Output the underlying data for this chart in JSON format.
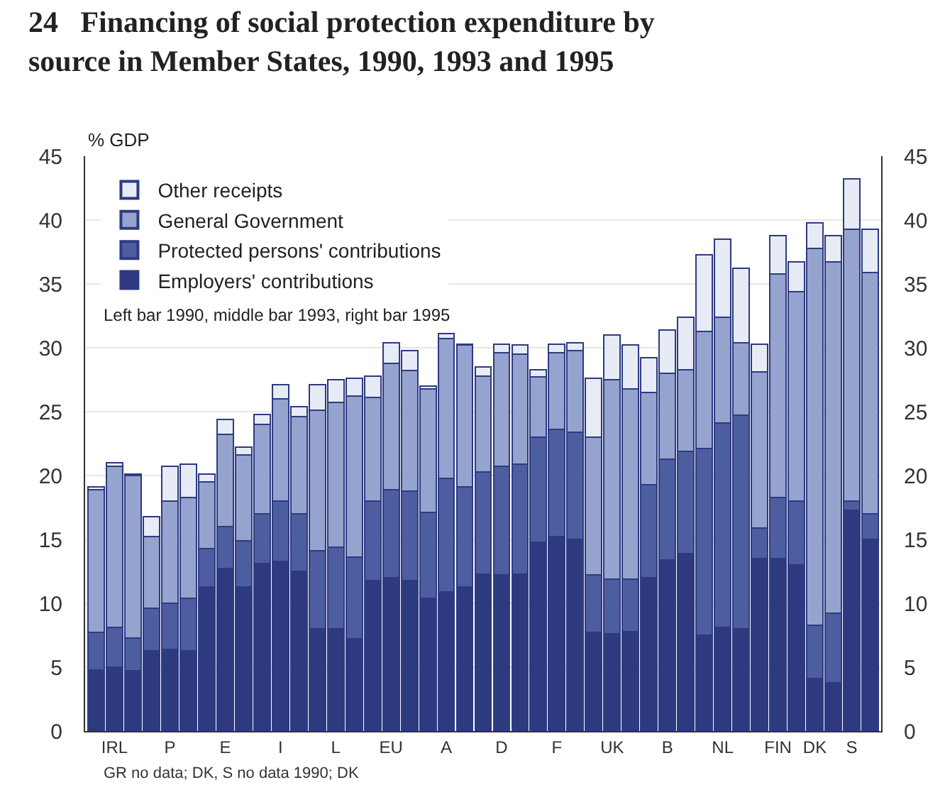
{
  "chart_data": {
    "type": "bar",
    "stacked": true,
    "title": "24   Financing of social protection expenditure by\nsource in Member States, 1990, 1993 and 1995",
    "ylabel": "% GDP",
    "categories": [
      null,
      "IRL",
      null,
      null,
      "P",
      null,
      null,
      "E",
      null,
      null,
      "I",
      null,
      null,
      "L",
      null,
      null,
      "EU",
      null,
      null,
      "A",
      null,
      null,
      "D",
      null,
      null,
      "F",
      null,
      null,
      "UK",
      null,
      null,
      "B",
      null,
      null,
      "NL",
      null,
      null,
      "FIN",
      null,
      "DK",
      null,
      "S",
      null
    ],
    "series": [
      {
        "name": "Employers' contributions",
        "color": "#2e3a80",
        "values": [
          4.8,
          5.0,
          4.7,
          6.3,
          6.4,
          6.3,
          11.3,
          12.7,
          11.3,
          13.1,
          13.3,
          12.5,
          8.0,
          8.0,
          7.2,
          11.8,
          12.0,
          11.8,
          10.4,
          10.9,
          11.3,
          12.3,
          12.2,
          12.3,
          14.8,
          15.2,
          15.0,
          7.7,
          7.6,
          7.8,
          12.0,
          13.4,
          13.9,
          7.5,
          8.1,
          8.0,
          13.5,
          13.5,
          13.0,
          4.1,
          3.8,
          17.3,
          15.0
        ]
      },
      {
        "name": "Protected persons' contributions",
        "color": "#4d5ea0",
        "values": [
          2.9,
          3.1,
          2.6,
          3.3,
          3.6,
          4.1,
          3.0,
          3.3,
          3.6,
          3.9,
          4.7,
          4.5,
          6.1,
          6.4,
          6.4,
          6.2,
          6.9,
          7.0,
          6.7,
          8.9,
          7.8,
          8.0,
          8.5,
          8.6,
          8.2,
          8.4,
          8.4,
          4.5,
          4.3,
          4.1,
          7.3,
          7.9,
          8.0,
          14.6,
          16.0,
          16.7,
          2.4,
          4.8,
          5.0,
          4.2,
          5.4,
          0.7,
          2.0
        ]
      },
      {
        "name": "General Government",
        "color": "#95a3cf",
        "values": [
          11.2,
          12.6,
          12.7,
          5.6,
          8.0,
          7.9,
          5.2,
          7.2,
          6.7,
          7.0,
          8.0,
          7.6,
          11.0,
          11.3,
          12.6,
          8.1,
          9.9,
          9.4,
          9.7,
          10.9,
          11.1,
          7.5,
          8.9,
          8.6,
          4.7,
          6.0,
          6.4,
          10.8,
          15.6,
          14.9,
          7.2,
          6.7,
          6.4,
          9.2,
          8.3,
          5.7,
          12.2,
          17.5,
          16.4,
          29.5,
          27.5,
          21.3,
          18.9
        ]
      },
      {
        "name": "Other receipts",
        "color": "#e6ebf5",
        "values": [
          0.2,
          0.3,
          0.1,
          1.6,
          2.7,
          2.6,
          0.6,
          1.2,
          0.6,
          0.8,
          1.1,
          0.8,
          2.0,
          1.8,
          1.4,
          1.7,
          1.6,
          1.6,
          0.2,
          0.4,
          0.1,
          0.7,
          0.7,
          0.7,
          0.6,
          0.7,
          0.6,
          4.6,
          3.5,
          3.4,
          2.7,
          3.4,
          4.1,
          6.0,
          6.1,
          5.8,
          2.2,
          3.0,
          2.3,
          2.0,
          2.1,
          3.9,
          3.4
        ]
      }
    ],
    "ylim": [
      0,
      45
    ],
    "yticks": [
      0,
      5,
      10,
      15,
      20,
      25,
      30,
      35,
      40,
      45
    ],
    "y2lim": [
      0,
      45
    ],
    "y2ticks": [
      0,
      5,
      10,
      15,
      20,
      25,
      30,
      35,
      40,
      45
    ],
    "grid": "y",
    "legend": "top left",
    "annotations": [
      "Left bar 1990, middle bar 1993, right bar 1995",
      "GR no data; DK, S no data 1990; DK"
    ]
  }
}
